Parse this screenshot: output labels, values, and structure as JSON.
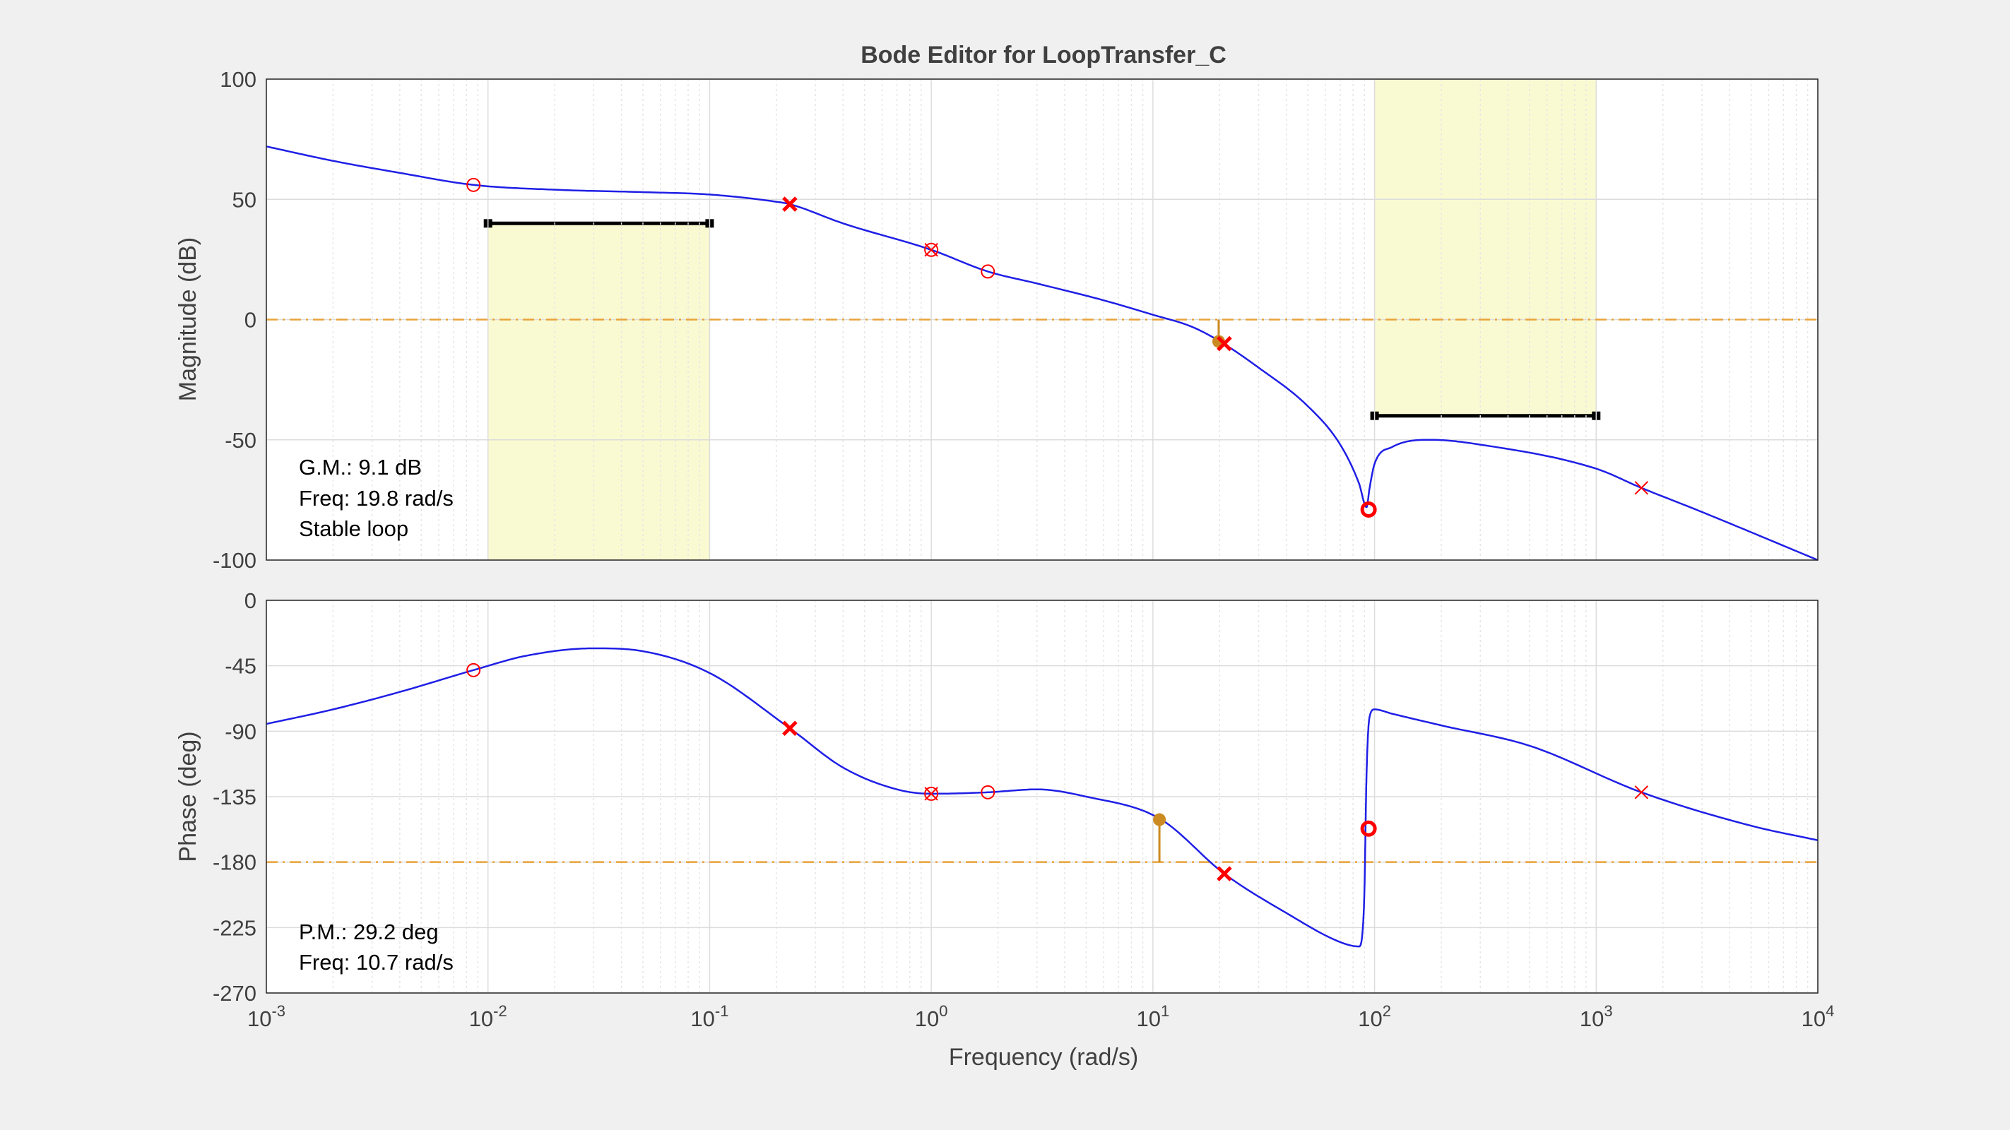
{
  "window": {
    "title": "Bode Editor for LoopTransfer_C"
  },
  "colors": {
    "background": "#f0f0f0",
    "axes_bg": "#ffffff",
    "response": "#1f1fe6",
    "root_marker": "#ff0000",
    "crossover_line": "#e8a33a",
    "margin_marker": "#cc8a22",
    "requirement_fill": "#fafad2",
    "requirement_edge": "#000000",
    "grid": "#dcdcdc",
    "text": "#404040"
  },
  "magnitude_info": {
    "gm": "G.M.: 9.1 dB",
    "freq": "Freq: 19.8 rad/s",
    "status": "Stable loop"
  },
  "phase_info": {
    "pm": "P.M.: 29.2 deg",
    "freq": "Freq: 10.7 rad/s"
  },
  "chart_data": [
    {
      "type": "line",
      "panel": "magnitude",
      "title": "Bode Editor for LoopTransfer_C",
      "ylabel": "Magnitude (dB)",
      "xscale": "log",
      "xlim": [
        0.001,
        10000
      ],
      "ylim": [
        -100,
        100
      ],
      "yticks": [
        "100",
        "50",
        "0",
        "-50",
        "-100"
      ],
      "yticks_values": [
        100,
        50,
        0,
        -50,
        -100
      ],
      "grid": true,
      "series": [
        {
          "x": [
            0.001,
            0.002,
            0.004,
            0.0086,
            0.02,
            0.05,
            0.1,
            0.2,
            0.23,
            0.4,
            1.0,
            1.8,
            3,
            6,
            10,
            15,
            20,
            30,
            50,
            70,
            85,
            92,
            95,
            100,
            120,
            180,
            300,
            1000,
            1600,
            3000,
            10000
          ],
          "y": [
            72,
            66,
            61,
            56,
            54,
            53,
            52,
            49,
            48,
            40,
            29,
            20,
            15,
            8,
            2,
            -3,
            -9,
            -20,
            -36,
            -52,
            -68,
            -78,
            -70,
            -60,
            -53,
            -50,
            -52,
            -62,
            -70,
            -80,
            -100
          ]
        }
      ],
      "crossover_line_y": 0,
      "zero_markers": [
        {
          "x": 0.0086,
          "y": 56,
          "style": "thin"
        },
        {
          "x": 1.0,
          "y": 29,
          "style": "thin"
        },
        {
          "x": 1.8,
          "y": 20,
          "style": "thin"
        },
        {
          "x": 94,
          "y": -79,
          "style": "bold"
        }
      ],
      "pole_markers": [
        {
          "x": 0.23,
          "y": 48,
          "style": "bold"
        },
        {
          "x": 1.0,
          "y": 29,
          "style": "thin"
        },
        {
          "x": 21,
          "y": -10,
          "style": "bold"
        },
        {
          "x": 1600,
          "y": -70,
          "style": "thin"
        }
      ],
      "margin_marker": {
        "x": 19.8,
        "y": -9.1
      },
      "requirements": [
        {
          "x_range": [
            0.01,
            0.1
          ],
          "bound": 40,
          "shade_to": -100
        },
        {
          "x_range": [
            100,
            1000
          ],
          "bound": -40,
          "shade_to": 100
        }
      ]
    },
    {
      "type": "line",
      "panel": "phase",
      "ylabel": "Phase (deg)",
      "xlabel": "Frequency (rad/s)",
      "xscale": "log",
      "xlim": [
        0.001,
        10000
      ],
      "ylim": [
        -270,
        0
      ],
      "yticks": [
        "0",
        "-45",
        "-90",
        "-135",
        "-180",
        "-225",
        "-270"
      ],
      "yticks_values": [
        0,
        -45,
        -90,
        -135,
        -180,
        -225,
        -270
      ],
      "xticks": [
        "10",
        "10",
        "10",
        "10",
        "10",
        "10",
        "10",
        "10"
      ],
      "xticks_exponents": [
        "-3",
        "-2",
        "-1",
        "0",
        "1",
        "2",
        "3",
        "4"
      ],
      "xticks_values": [
        0.001,
        0.01,
        0.1,
        1,
        10,
        100,
        1000,
        10000
      ],
      "grid": true,
      "series": [
        {
          "x": [
            0.001,
            0.002,
            0.004,
            0.0086,
            0.015,
            0.03,
            0.05,
            0.1,
            0.23,
            0.4,
            0.7,
            1.0,
            1.8,
            3,
            5,
            10.7,
            21,
            40,
            70,
            85,
            88,
            90,
            92,
            95,
            100,
            120,
            200,
            500,
            1600,
            5000,
            10000
          ],
          "y": [
            -85,
            -75,
            -63,
            -48,
            -38,
            -33,
            -35,
            -50,
            -88,
            -115,
            -130,
            -133,
            -132,
            -130,
            -135,
            -150,
            -188,
            -215,
            -235,
            -238,
            -230,
            -200,
            -120,
            -80,
            -75,
            -78,
            -86,
            -100,
            -132,
            -155,
            -165
          ]
        }
      ],
      "crossover_line_y": -180,
      "zero_markers": [
        {
          "x": 0.0086,
          "y": -48,
          "style": "thin"
        },
        {
          "x": 1.0,
          "y": -133,
          "style": "thin"
        },
        {
          "x": 1.8,
          "y": -132,
          "style": "thin"
        },
        {
          "x": 94,
          "y": -157,
          "style": "bold"
        }
      ],
      "pole_markers": [
        {
          "x": 0.23,
          "y": -88,
          "style": "bold"
        },
        {
          "x": 1.0,
          "y": -133,
          "style": "thin"
        },
        {
          "x": 21,
          "y": -188,
          "style": "bold"
        },
        {
          "x": 1600,
          "y": -132,
          "style": "thin"
        }
      ],
      "margin_marker": {
        "x": 10.7,
        "y": -150.8
      }
    }
  ]
}
